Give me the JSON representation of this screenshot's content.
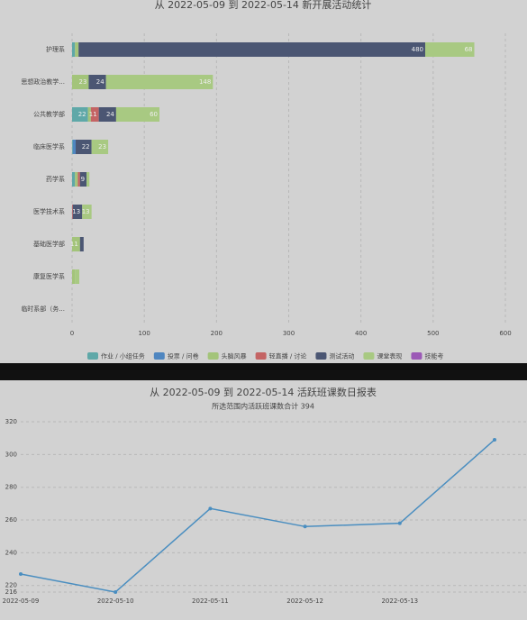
{
  "chart_data": [
    {
      "type": "hbar-stacked",
      "title": "从 2022-05-09 到 2022-05-14 新开展活动统计",
      "categories": [
        "护理系",
        "思想政治教学...",
        "公共教学部",
        "临床医学系",
        "药学系",
        "医学技术系",
        "基础医学部",
        "康复医学系",
        "临时系部（务..."
      ],
      "series": [
        {
          "name": "作业 / 小组任务",
          "color": "#5fa8a8",
          "values": [
            4,
            0,
            22,
            1,
            4,
            0,
            0,
            0,
            0
          ]
        },
        {
          "name": "投票 / 问卷",
          "color": "#4f86c0",
          "values": [
            0,
            0,
            0,
            4,
            0,
            0,
            0,
            0,
            0
          ]
        },
        {
          "name": "头脑风暴",
          "color": "#a3c47a",
          "values": [
            5,
            23,
            4,
            0,
            4,
            0,
            11,
            4,
            0
          ]
        },
        {
          "name": "轻直播 / 讨论",
          "color": "#c46464",
          "values": [
            0,
            0,
            11,
            0,
            3,
            1,
            0,
            0,
            0
          ]
        },
        {
          "name": "测试活动",
          "color": "#4b5673",
          "values": [
            480,
            24,
            24,
            22,
            9,
            13,
            5,
            0,
            0
          ]
        },
        {
          "name": "课堂表现",
          "color": "#a8c982",
          "values": [
            68,
            148,
            60,
            23,
            4,
            13,
            0,
            6,
            0
          ]
        },
        {
          "name": "技能考",
          "color": "#9b59b6",
          "values": [
            0,
            0,
            0,
            0,
            0,
            0,
            0,
            0,
            0
          ]
        }
      ],
      "xlim": [
        0,
        600
      ],
      "xticks": [
        0,
        100,
        200,
        300,
        400,
        500,
        600
      ],
      "grid": true
    },
    {
      "type": "line",
      "title": "从 2022-05-09 到 2022-05-14 活跃班课数日报表",
      "subtitle": "所选范围内活跃班课数合计 394",
      "categories": [
        "2022-05-09",
        "2022-05-10",
        "2022-05-11",
        "2022-05-12",
        "2022-05-13",
        null
      ],
      "values": [
        227,
        216,
        267,
        256,
        258,
        309
      ],
      "color": "#4a8ec0",
      "ylim": [
        216,
        320
      ],
      "yticks": [
        216,
        220,
        240,
        260,
        280,
        300,
        320
      ],
      "grid": true
    }
  ]
}
